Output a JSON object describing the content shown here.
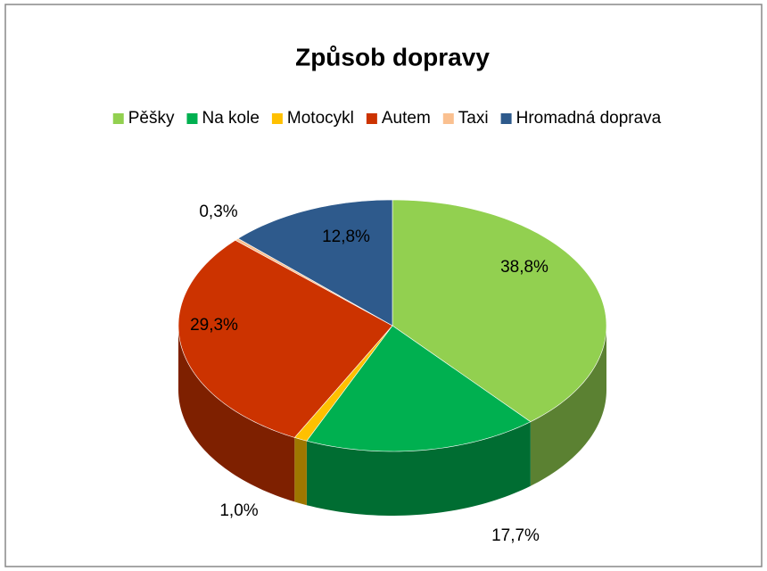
{
  "chart_data": {
    "type": "pie",
    "title": "Způsob dopravy",
    "categories": [
      "Pěšky",
      "Na kole",
      "Motocykl",
      "Autem",
      "Taxi",
      "Hromadná doprava"
    ],
    "values": [
      38.8,
      17.7,
      1.0,
      29.3,
      0.3,
      12.8
    ],
    "value_labels": [
      "38,8%",
      "17,7%",
      "1,0%",
      "29,3%",
      "0,3%",
      "12,8%"
    ],
    "colors": [
      "#92d050",
      "#00b050",
      "#ffc000",
      "#cc3300",
      "#fac090",
      "#2e5a8c"
    ],
    "legend": "top"
  }
}
